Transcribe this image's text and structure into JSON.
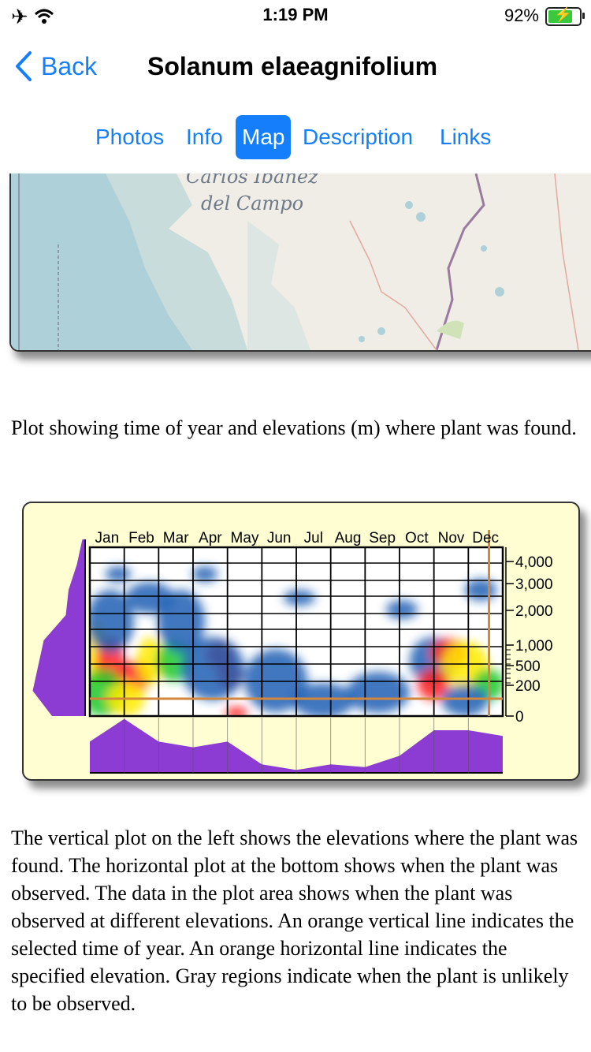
{
  "status": {
    "time": "1:19 PM",
    "battery": "92%"
  },
  "nav": {
    "back_label": "Back",
    "title": "Solanum elaeagnifolium"
  },
  "tabs": [
    {
      "label": "Photos",
      "active": false
    },
    {
      "label": "Info",
      "active": false
    },
    {
      "label": "Map",
      "active": true
    },
    {
      "label": "Description",
      "active": false
    },
    {
      "label": "Links",
      "active": false
    }
  ],
  "map": {
    "labels": [
      "Carlos Ibanez",
      "del Campo"
    ]
  },
  "plot_caption": "Plot showing time of year and elevations (m) where plant was found.",
  "chart_data": {
    "type": "heatmap",
    "months": [
      "Jan",
      "Feb",
      "Mar",
      "Apr",
      "May",
      "Jun",
      "Jul",
      "Aug",
      "Sep",
      "Oct",
      "Nov",
      "Dec"
    ],
    "elevation_ticks": [
      "4,000",
      "3,000",
      "2,000",
      "1,000",
      "500",
      "200",
      "0"
    ],
    "selected_month": "Dec",
    "specified_elevation_m": 100,
    "monthly_observation_profile": [
      0.55,
      0.95,
      0.55,
      0.45,
      0.55,
      0.15,
      0.05,
      0.15,
      0.1,
      0.3,
      0.75,
      0.75,
      0.65
    ],
    "elevation_profile": [
      0.05,
      0.15,
      0.3,
      0.35,
      0.75,
      0.85,
      0.95,
      0.6
    ],
    "colors": {
      "low": "#1e5fb4",
      "mid": "#1ec828",
      "high": "#ffeb00",
      "peak": "#ff1e1e",
      "marker": "#d2873c",
      "profile": "#8c3cd2",
      "background": "#fffed3"
    }
  },
  "description": "The vertical plot on the left shows the elevations where the plant was found. The horizontal plot at the bottom shows when the plant was observed. The data in the plot area shows when the plant was observed at different elevations. An orange vertical line indicates the selected time of year. An orange horizontal line indicates the specified elevation. Gray regions indicate when the plant is unlikely to be observed."
}
